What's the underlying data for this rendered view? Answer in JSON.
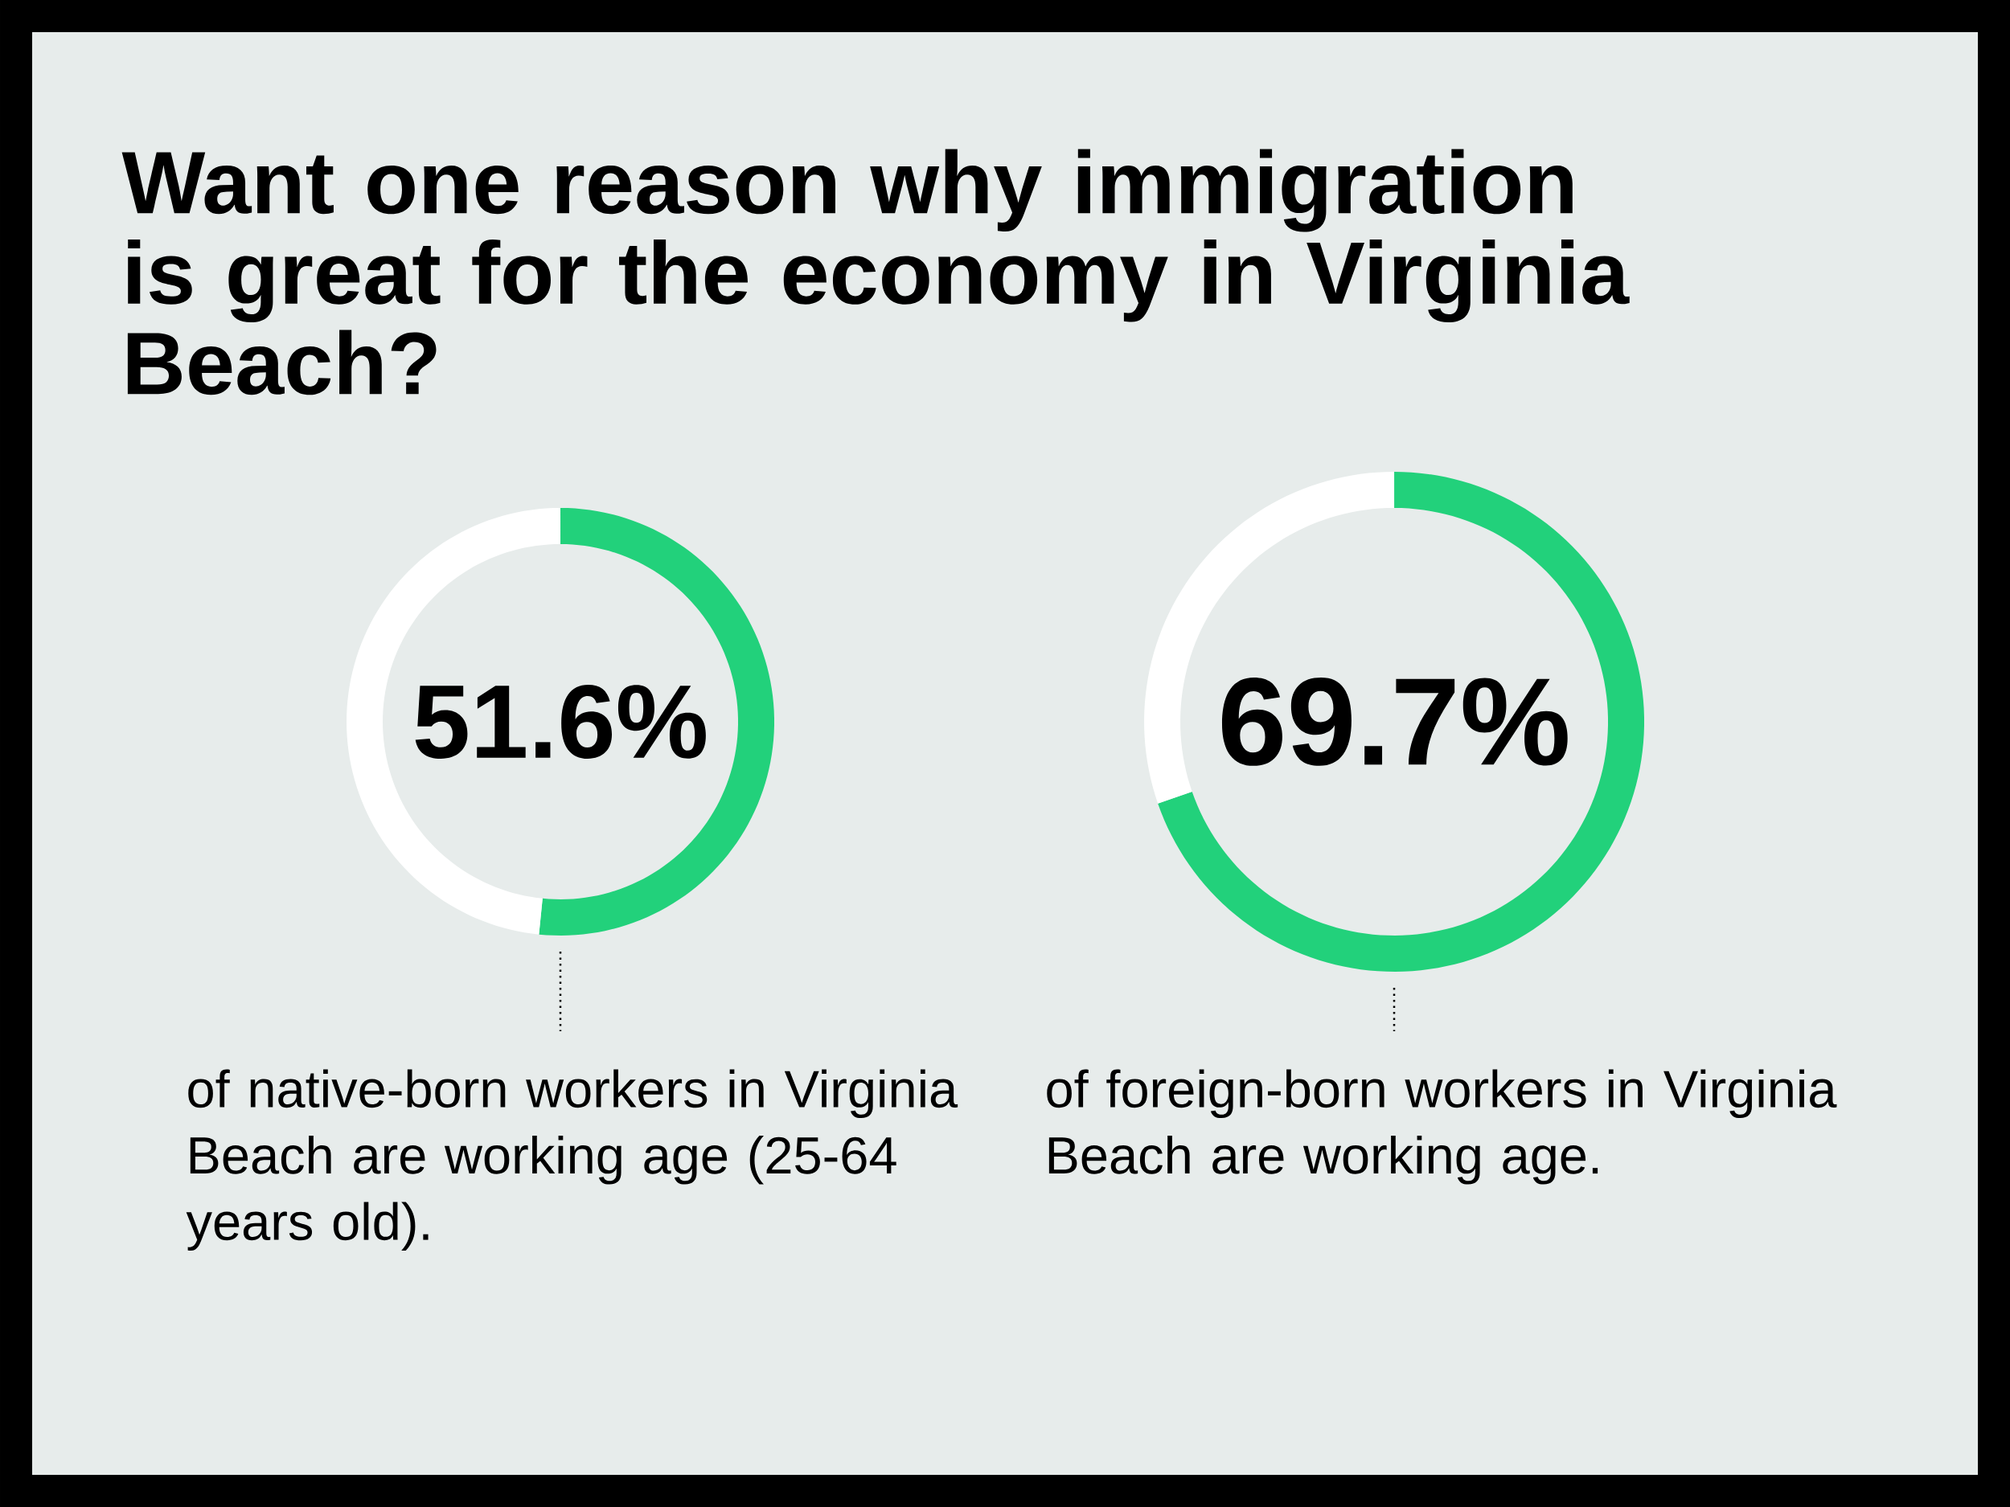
{
  "chart_data": [
    {
      "type": "donut",
      "title": "Want one reason why immigration is great for the economy in Virginia Beach?",
      "categories": [
        null,
        null
      ],
      "values": [
        51.6,
        48.4
      ],
      "colors": [
        "#22d17b",
        "#ffffff"
      ],
      "value_labels": [
        "51.6%",
        null
      ],
      "annotations": [
        "of native-born workers in Virginia Beach are working age (25-64 years old)."
      ]
    },
    {
      "type": "donut",
      "categories": [
        null,
        null
      ],
      "values": [
        69.7,
        30.3
      ],
      "colors": [
        "#22d17b",
        "#ffffff"
      ],
      "value_labels": [
        "69.7%",
        null
      ],
      "annotations": [
        "of foreign-born workers in Virginia Beach are working age."
      ]
    }
  ]
}
